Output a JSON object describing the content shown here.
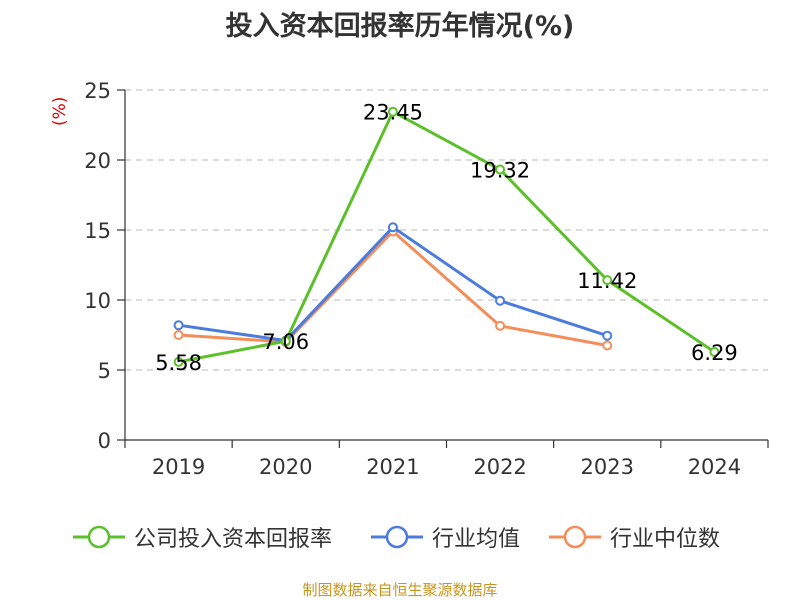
{
  "title": "投入资本回报率历年情况(%)",
  "unit_label": "(%)",
  "footer": "制图数据来自恒生聚源数据库",
  "colors": {
    "company": "#5cc02b",
    "industry_avg": "#4b7bdc",
    "industry_median": "#f58d5b",
    "unit": "#e00000",
    "footer": "#c8961e"
  },
  "chart_data": {
    "type": "line",
    "categories": [
      "2019",
      "2020",
      "2021",
      "2022",
      "2023",
      "2024"
    ],
    "ylim": [
      0,
      25
    ],
    "yticks": [
      0,
      5,
      10,
      15,
      20,
      25
    ],
    "grid": true,
    "legend_position": "bottom",
    "series": [
      {
        "name": "公司投入资本回报率",
        "values": [
          5.58,
          7.06,
          23.45,
          19.32,
          11.42,
          6.29
        ],
        "labels": [
          "5.58",
          "7.06",
          "23.45",
          "19.32",
          "11.42",
          "6.29"
        ]
      },
      {
        "name": "行业均值",
        "values": [
          8.2,
          7.1,
          15.2,
          9.95,
          7.45,
          null
        ]
      },
      {
        "name": "行业中位数",
        "values": [
          7.5,
          7.0,
          14.9,
          8.15,
          6.75,
          null
        ]
      }
    ]
  }
}
